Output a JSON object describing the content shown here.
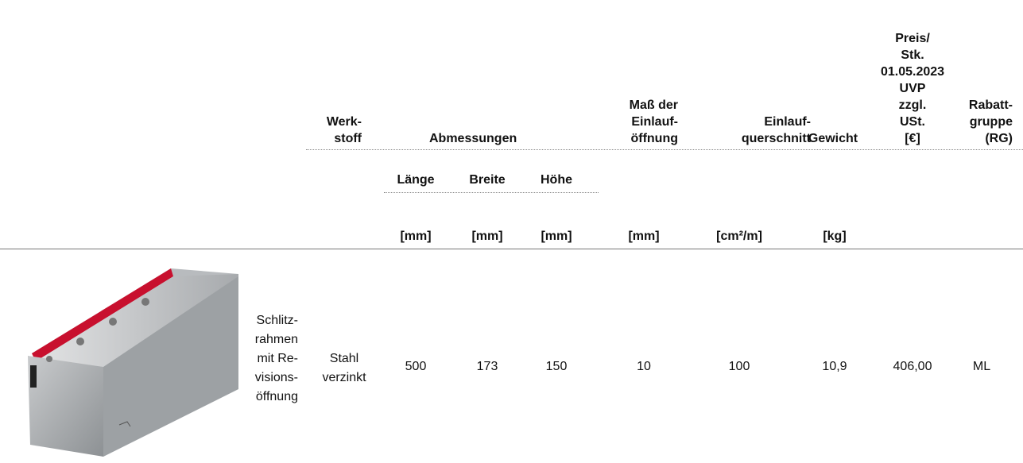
{
  "header": {
    "werkstoff": "Werk-\nstoff",
    "abmessungen": "Abmessungen",
    "mass": "Maß der\nEinlauf-\nöffnung",
    "querschnitt": "Einlauf-\nquerschnitt",
    "gewicht": "Gewicht",
    "preis": "Preis/\nStk.\n01.05.2023\nUVP\nzzgl.\nUSt.\n[€]",
    "rabatt": "Rabatt-\ngruppe\n(RG)",
    "sub": [
      "Länge",
      "Breite",
      "Höhe"
    ],
    "units": [
      "[mm]",
      "[mm]",
      "[mm]",
      "[mm]",
      "[cm²/m]",
      "[kg]"
    ]
  },
  "row": {
    "description": "Schlitz-\nrahmen\nmit Re-\nvisions-\nöffnung",
    "werkstoff": "Stahl\nverzinkt",
    "cells": [
      "500",
      "173",
      "150",
      "10",
      "100",
      "10,9",
      "406,00",
      "ML"
    ]
  }
}
